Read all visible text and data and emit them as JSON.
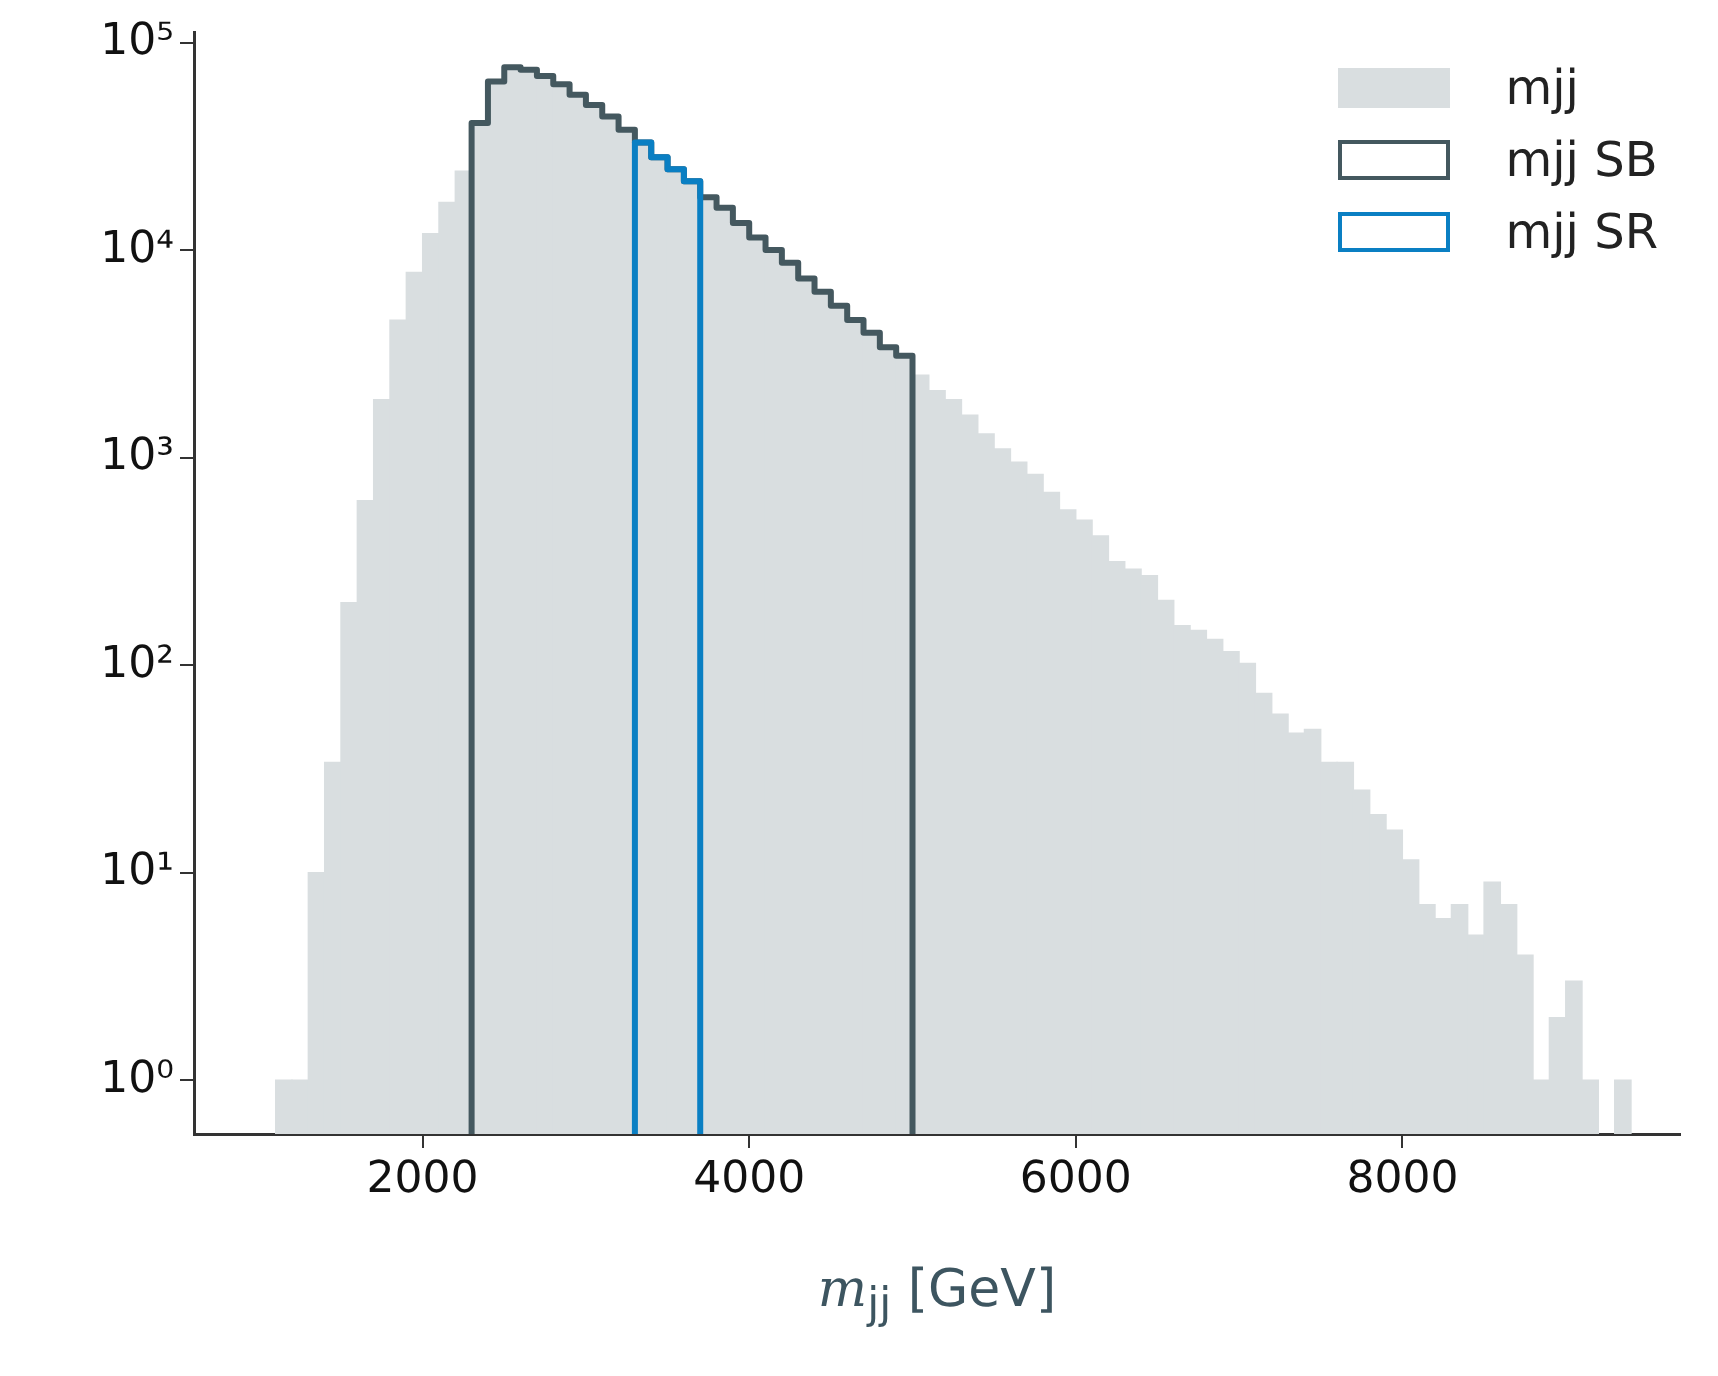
{
  "chart_data": {
    "type": "histogram",
    "xlabel": "m$_{jj}$ [GeV]",
    "log": "y",
    "grid": false,
    "legend": "top right",
    "xlim": [
      600,
      9700
    ],
    "xticks": [
      2000,
      4000,
      6000,
      8000
    ],
    "ylim": [
      0.55,
      112000
    ],
    "yticks": [
      {
        "value": 1,
        "label": "10⁰"
      },
      {
        "value": 10,
        "label": "10¹"
      },
      {
        "value": 100,
        "label": "10²"
      },
      {
        "value": 1000,
        "label": "10³"
      },
      {
        "value": 10000,
        "label": "10⁴"
      },
      {
        "value": 100000,
        "label": "10⁵"
      }
    ],
    "bins": [
      1100,
      1200,
      1300,
      1400,
      1500,
      1600,
      1700,
      1800,
      1900,
      2000,
      2100,
      2200,
      2300,
      2400,
      2500,
      2600,
      2700,
      2800,
      2900,
      3000,
      3100,
      3200,
      3300,
      3400,
      3500,
      3600,
      3700,
      3800,
      3900,
      4000,
      4100,
      4200,
      4300,
      4400,
      4500,
      4600,
      4700,
      4800,
      4900,
      5000,
      5100,
      5200,
      5300,
      5400,
      5500,
      5600,
      5700,
      5800,
      5900,
      6000,
      6100,
      6200,
      6300,
      6400,
      6500,
      6600,
      6700,
      6800,
      6900,
      7000,
      7100,
      7200,
      7300,
      7400,
      7500,
      7600,
      7700,
      7800,
      7900,
      8000,
      8100,
      8200,
      8300,
      8400,
      8500,
      8600,
      8700,
      8800,
      8900,
      9000,
      9100,
      9200,
      9300,
      9400
    ],
    "series": [
      {
        "name": "mjj",
        "color": "#d9dee0",
        "values": [
          1,
          1,
          10,
          34,
          200,
          620,
          1900,
          4600,
          7800,
          12000,
          17000,
          24000,
          41000,
          65000,
          76000,
          74000,
          69000,
          63000,
          56000,
          50000,
          44000,
          38000,
          33000,
          28000,
          24500,
          21500,
          18000,
          16000,
          13500,
          11500,
          10000,
          8700,
          7300,
          6300,
          5400,
          4600,
          4000,
          3400,
          3100,
          2500,
          2100,
          1900,
          1600,
          1300,
          1100,
          950,
          830,
          680,
          560,
          500,
          420,
          315,
          290,
          270,
          205,
          155,
          147,
          133,
          116,
          102,
          73,
          58,
          47,
          49,
          34,
          34,
          25,
          19,
          16,
          11.5,
          7,
          6,
          7,
          5,
          9,
          7,
          4,
          1,
          2,
          3,
          1,
          null,
          1
        ]
      },
      {
        "name": "mjj SB",
        "type": "step",
        "color": "#44585f",
        "x": [
          2300,
          2400,
          2500,
          2600,
          2700,
          2800,
          2900,
          3000,
          3100,
          3200,
          3300,
          3400,
          3500,
          3600,
          3700,
          3800,
          3900,
          4000,
          4100,
          4200,
          4300,
          4400,
          4500,
          4600,
          4700,
          4800,
          4900,
          5000
        ],
        "values": [
          41000,
          65000,
          76000,
          74000,
          69000,
          63000,
          56000,
          50000,
          44000,
          38000,
          33000,
          28000,
          24500,
          21500,
          18000,
          16000,
          13500,
          11500,
          10000,
          8700,
          7300,
          6300,
          5400,
          4600,
          4000,
          3400,
          3100,
          3100
        ]
      },
      {
        "name": "mjj SR",
        "type": "step",
        "color": "#0a7fc3",
        "x": [
          3300,
          3400,
          3500,
          3600,
          3700
        ],
        "values": [
          33000,
          28000,
          24500,
          21500,
          21500
        ]
      }
    ]
  }
}
